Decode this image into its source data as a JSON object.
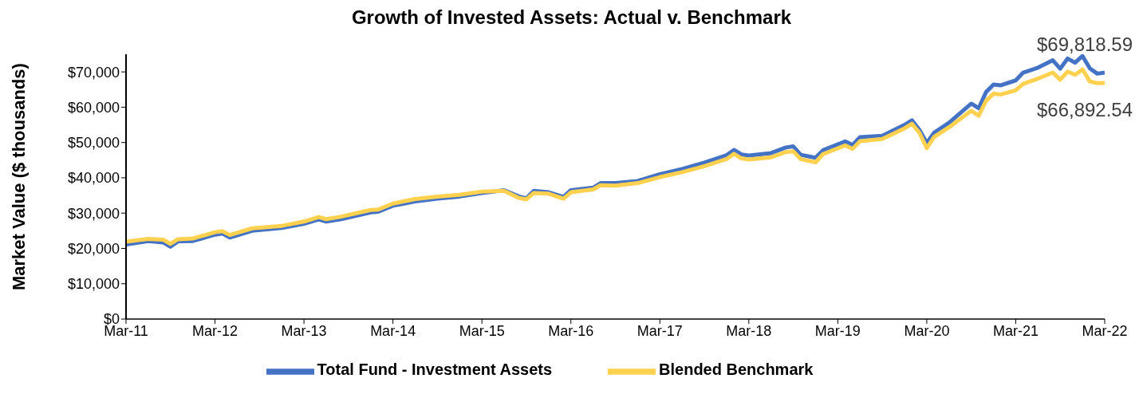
{
  "chart_data": {
    "type": "line",
    "title": "Growth of Invested Assets: Actual v. Benchmark",
    "ylabel": "Market Value ($ thousands)",
    "x": [
      "2011-03",
      "2011-06",
      "2011-08",
      "2011-09",
      "2011-10",
      "2011-12",
      "2012-03",
      "2012-04",
      "2012-05",
      "2012-08",
      "2012-12",
      "2013-03",
      "2013-05",
      "2013-06",
      "2013-08",
      "2013-12",
      "2014-01",
      "2014-03",
      "2014-06",
      "2014-09",
      "2014-12",
      "2015-03",
      "2015-06",
      "2015-08",
      "2015-09",
      "2015-10",
      "2015-12",
      "2016-02",
      "2016-03",
      "2016-06",
      "2016-07",
      "2016-09",
      "2016-12",
      "2017-03",
      "2017-06",
      "2017-09",
      "2017-12",
      "2018-01",
      "2018-02",
      "2018-03",
      "2018-06",
      "2018-08",
      "2018-09",
      "2018-10",
      "2018-12",
      "2019-01",
      "2019-04",
      "2019-05",
      "2019-06",
      "2019-09",
      "2019-12",
      "2020-01",
      "2020-02",
      "2020-03",
      "2020-04",
      "2020-06",
      "2020-09",
      "2020-10",
      "2020-11",
      "2020-12",
      "2021-01",
      "2021-03",
      "2021-04",
      "2021-06",
      "2021-08",
      "2021-09",
      "2021-10",
      "2021-11",
      "2021-12",
      "2022-01",
      "2022-02",
      "2022-03"
    ],
    "series": [
      {
        "name": "Total Fund - Investment Assets",
        "color": "#4472c4",
        "values": [
          21100,
          22100,
          21700,
          20500,
          22000,
          22100,
          23900,
          24200,
          23100,
          25000,
          25800,
          27000,
          28200,
          27600,
          28300,
          30200,
          30400,
          32100,
          33300,
          34100,
          34700,
          35700,
          36500,
          34700,
          34200,
          36300,
          35900,
          34600,
          36500,
          37200,
          38500,
          38500,
          39100,
          41000,
          42500,
          44300,
          46400,
          47900,
          46600,
          46300,
          47000,
          48600,
          48900,
          46500,
          45700,
          47800,
          50300,
          49300,
          51500,
          51900,
          55000,
          56300,
          53600,
          49900,
          52800,
          55600,
          61000,
          59700,
          64300,
          66400,
          66200,
          67600,
          69800,
          71200,
          73300,
          70900,
          73800,
          72600,
          74500,
          71000,
          69500,
          69818.59
        ]
      },
      {
        "name": "Blended Benchmark",
        "color": "#ffd14f",
        "values": [
          21900,
          22700,
          22500,
          21300,
          22600,
          22800,
          24600,
          24900,
          23800,
          25700,
          26400,
          27600,
          28900,
          28300,
          29000,
          30900,
          31000,
          32700,
          34000,
          34700,
          35200,
          36100,
          36300,
          34300,
          33900,
          35700,
          35500,
          34100,
          35900,
          36700,
          37900,
          37800,
          38500,
          40200,
          41600,
          43300,
          45300,
          46800,
          45500,
          45200,
          45800,
          47300,
          47500,
          45300,
          44400,
          46700,
          49200,
          48200,
          50400,
          51000,
          54000,
          55300,
          52800,
          48400,
          51600,
          54300,
          59000,
          57600,
          61800,
          63800,
          63600,
          64800,
          66600,
          68100,
          69800,
          67800,
          70100,
          69200,
          70700,
          67300,
          66800,
          66892.54
        ]
      }
    ],
    "xlim": [
      "2011-03",
      "2022-03"
    ],
    "xticks": [
      {
        "value": "2011-03",
        "label": "Mar-11"
      },
      {
        "value": "2012-03",
        "label": "Mar-12"
      },
      {
        "value": "2013-03",
        "label": "Mar-13"
      },
      {
        "value": "2014-03",
        "label": "Mar-14"
      },
      {
        "value": "2015-03",
        "label": "Mar-15"
      },
      {
        "value": "2016-03",
        "label": "Mar-16"
      },
      {
        "value": "2017-03",
        "label": "Mar-17"
      },
      {
        "value": "2018-03",
        "label": "Mar-18"
      },
      {
        "value": "2019-03",
        "label": "Mar-19"
      },
      {
        "value": "2020-03",
        "label": "Mar-20"
      },
      {
        "value": "2021-03",
        "label": "Mar-21"
      },
      {
        "value": "2022-03",
        "label": "Mar-22"
      }
    ],
    "ylim": [
      0,
      75000
    ],
    "yticks": [
      {
        "value": 0,
        "label": "$0"
      },
      {
        "value": 10000,
        "label": "$10,000"
      },
      {
        "value": 20000,
        "label": "$20,000"
      },
      {
        "value": 30000,
        "label": "$30,000"
      },
      {
        "value": 40000,
        "label": "$40,000"
      },
      {
        "value": 50000,
        "label": "$50,000"
      },
      {
        "value": 60000,
        "label": "$60,000"
      },
      {
        "value": 70000,
        "label": "$70,000"
      }
    ],
    "annotations": [
      {
        "text": "$69,818.59",
        "x": "2022-03",
        "y": 69818.59
      },
      {
        "text": "$66,892.54",
        "x": "2022-03",
        "y": 66892.54
      }
    ],
    "grid": false,
    "legend": "bottom",
    "marker": "none",
    "line_style": "solid"
  }
}
